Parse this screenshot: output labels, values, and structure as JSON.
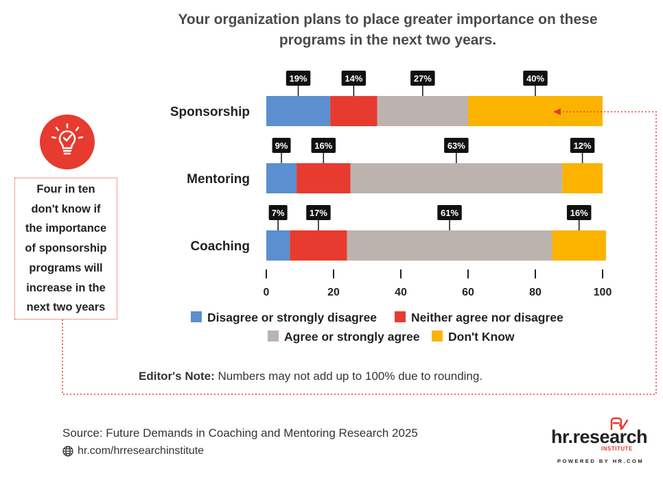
{
  "title": "Your organization plans to place greater importance on these programs in the next two years.",
  "colors": {
    "disagree": "#5b8fd0",
    "neither": "#e63b2e",
    "agree": "#bcb3ae",
    "dont_know": "#fbb300",
    "accent": "#e63b2e"
  },
  "callout": {
    "icon": "lightbulb-check-icon",
    "lines": [
      "Four in ten",
      "don't know if",
      "the importance",
      "of sponsorship",
      "programs will",
      "increase in the",
      "next two years"
    ]
  },
  "note": {
    "label": "Editor's Note:",
    "text": " Numbers may not add up to 100% due to rounding."
  },
  "source": "Source:  Future Demands in Coaching and Mentoring Research 2025",
  "url": "hr.com/hrresearchinstitute",
  "logo": {
    "word": "hr.research",
    "sub": "INSTITUTE",
    "powered": "POWERED BY HR.COM"
  },
  "chart_data": {
    "type": "bar",
    "orientation": "horizontal",
    "stacked": true,
    "categories": [
      "Sponsorship",
      "Mentoring",
      "Coaching"
    ],
    "series": [
      {
        "name": "Disagree or strongly disagree",
        "color": "#5b8fd0",
        "values": [
          19,
          9,
          7
        ],
        "labels": [
          "19%",
          "9%",
          "7%"
        ]
      },
      {
        "name": "Neither agree nor disagree",
        "color": "#e63b2e",
        "values": [
          14,
          16,
          17
        ],
        "labels": [
          "14%",
          "16%",
          "17%"
        ]
      },
      {
        "name": "Agree or strongly agree",
        "color": "#bcb3ae",
        "values": [
          27,
          63,
          61
        ],
        "labels": [
          "27%",
          "63%",
          "61%"
        ]
      },
      {
        "name": "Don't Know",
        "color": "#fbb300",
        "values": [
          40,
          12,
          16
        ],
        "labels": [
          "40%",
          "12%",
          "16%"
        ]
      }
    ],
    "xlim": [
      0,
      100
    ],
    "xticks": [
      0,
      20,
      40,
      60,
      80,
      100
    ],
    "legend_position": "bottom",
    "grid": false
  }
}
